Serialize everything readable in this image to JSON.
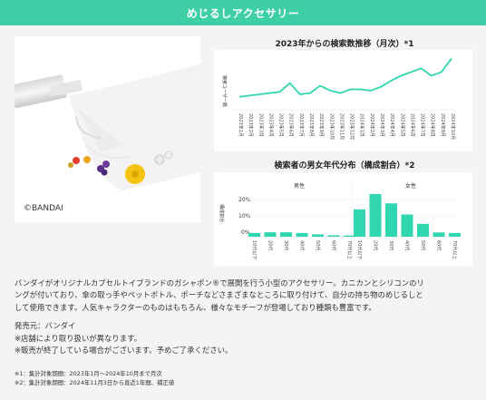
{
  "header": {
    "title": "めじるしアクセサリー"
  },
  "photo": {
    "copyright": "©BANDAI"
  },
  "trend_chart": {
    "title": "2023年からの検索数推移（月次）*1",
    "ylabel": "検索ユーザー数"
  },
  "gender_chart": {
    "title": "検索者の男女年代分布（構成割合）*2",
    "male_label": "男性",
    "female_label": "女性",
    "yticks": [
      "20%",
      "10%",
      "0%"
    ],
    "ylabel": "構成割合"
  },
  "description": {
    "line1": "バンダイがオリジナルカプセルトイブランドのガシャポン®で展開を行う小型のアクセサリー。カニカンとシリコンのリ",
    "line2": "ングが付いており、傘の取っ手やペットボトル、ポーチなどさまざまなところに取り付けて、自分の持ち物のめじるしと",
    "line3": "して使用できます。人気キャラクターのものはもちろん、様々なモチーフが登場しており種類も豊富です。"
  },
  "seller": {
    "line1": "発売元：バンダイ",
    "line2": "※店舗により取り扱いが異なります。",
    "line3": "※販売が終了している場合がございます。予めご了承ください。"
  },
  "notes": {
    "note1": "※1：集計対象期間：2023年1月〜2024年10月まで月次",
    "note2": "※2：集計対象期間：2024年11月3日から直近1年間、補正値"
  },
  "colors": {
    "accent": "#3ecfa6",
    "bar": "#2fd6b0"
  },
  "chart_data": [
    {
      "type": "line",
      "title": "2023年からの検索数推移（月次）*1",
      "ylabel": "検索ユーザー数",
      "categories": [
        "2023年1月",
        "2023年2月",
        "2023年3月",
        "2023年4月",
        "2023年5月",
        "2023年6月",
        "2023年7月",
        "2023年8月",
        "2023年9月",
        "2023年10月",
        "2023年11月",
        "2023年12月",
        "2024年1月",
        "2024年2月",
        "2024年3月",
        "2024年4月",
        "2024年5月",
        "2024年6月",
        "2024年7月",
        "2024年8月",
        "2024年9月",
        "2024年10月"
      ],
      "values": [
        18,
        20,
        22,
        24,
        26,
        40,
        22,
        24,
        36,
        28,
        24,
        30,
        30,
        28,
        34,
        44,
        52,
        58,
        64,
        52,
        58,
        80
      ],
      "ylim": [
        0,
        85
      ]
    },
    {
      "type": "bar",
      "title": "検索者の男女年代分布（構成割合）*2",
      "ylabel": "構成割合",
      "yticks": [
        "0%",
        "10%",
        "20%"
      ],
      "groups": [
        "男性",
        "女性"
      ],
      "categories": [
        "10代以下",
        "20代",
        "30代",
        "40代",
        "50代",
        "60代",
        "70代以上"
      ],
      "series": [
        {
          "name": "男性",
          "values": [
            2.2,
            2.6,
            2.6,
            2.2,
            1.4,
            0.8,
            0.7
          ]
        },
        {
          "name": "女性",
          "values": [
            16,
            25,
            19.5,
            13,
            7.5,
            2.5,
            2.2
          ]
        }
      ],
      "ylim": [
        0,
        26
      ]
    }
  ]
}
